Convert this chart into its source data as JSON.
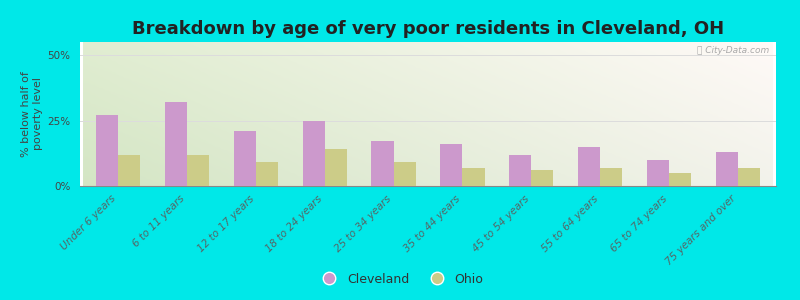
{
  "title": "Breakdown by age of very poor residents in Cleveland, OH",
  "categories": [
    "Under 6 years",
    "6 to 11 years",
    "12 to 17 years",
    "18 to 24 years",
    "25 to 34 years",
    "35 to 44 years",
    "45 to 54 years",
    "55 to 64 years",
    "65 to 74 years",
    "75 years and over"
  ],
  "cleveland_values": [
    27,
    32,
    21,
    25,
    17,
    16,
    12,
    15,
    10,
    13
  ],
  "ohio_values": [
    12,
    12,
    9,
    14,
    9,
    7,
    6,
    7,
    5,
    7
  ],
  "cleveland_color": "#cc99cc",
  "ohio_color": "#cccc88",
  "background_outer": "#00e8e8",
  "ylabel": "% below half of\npoverty level",
  "yticks": [
    0,
    25,
    50
  ],
  "ylim": [
    0,
    55
  ],
  "title_fontsize": 13,
  "axis_label_fontsize": 8,
  "tick_fontsize": 7.5,
  "legend_labels": [
    "Cleveland",
    "Ohio"
  ],
  "watermark": "Ⓢ City-Data.com"
}
